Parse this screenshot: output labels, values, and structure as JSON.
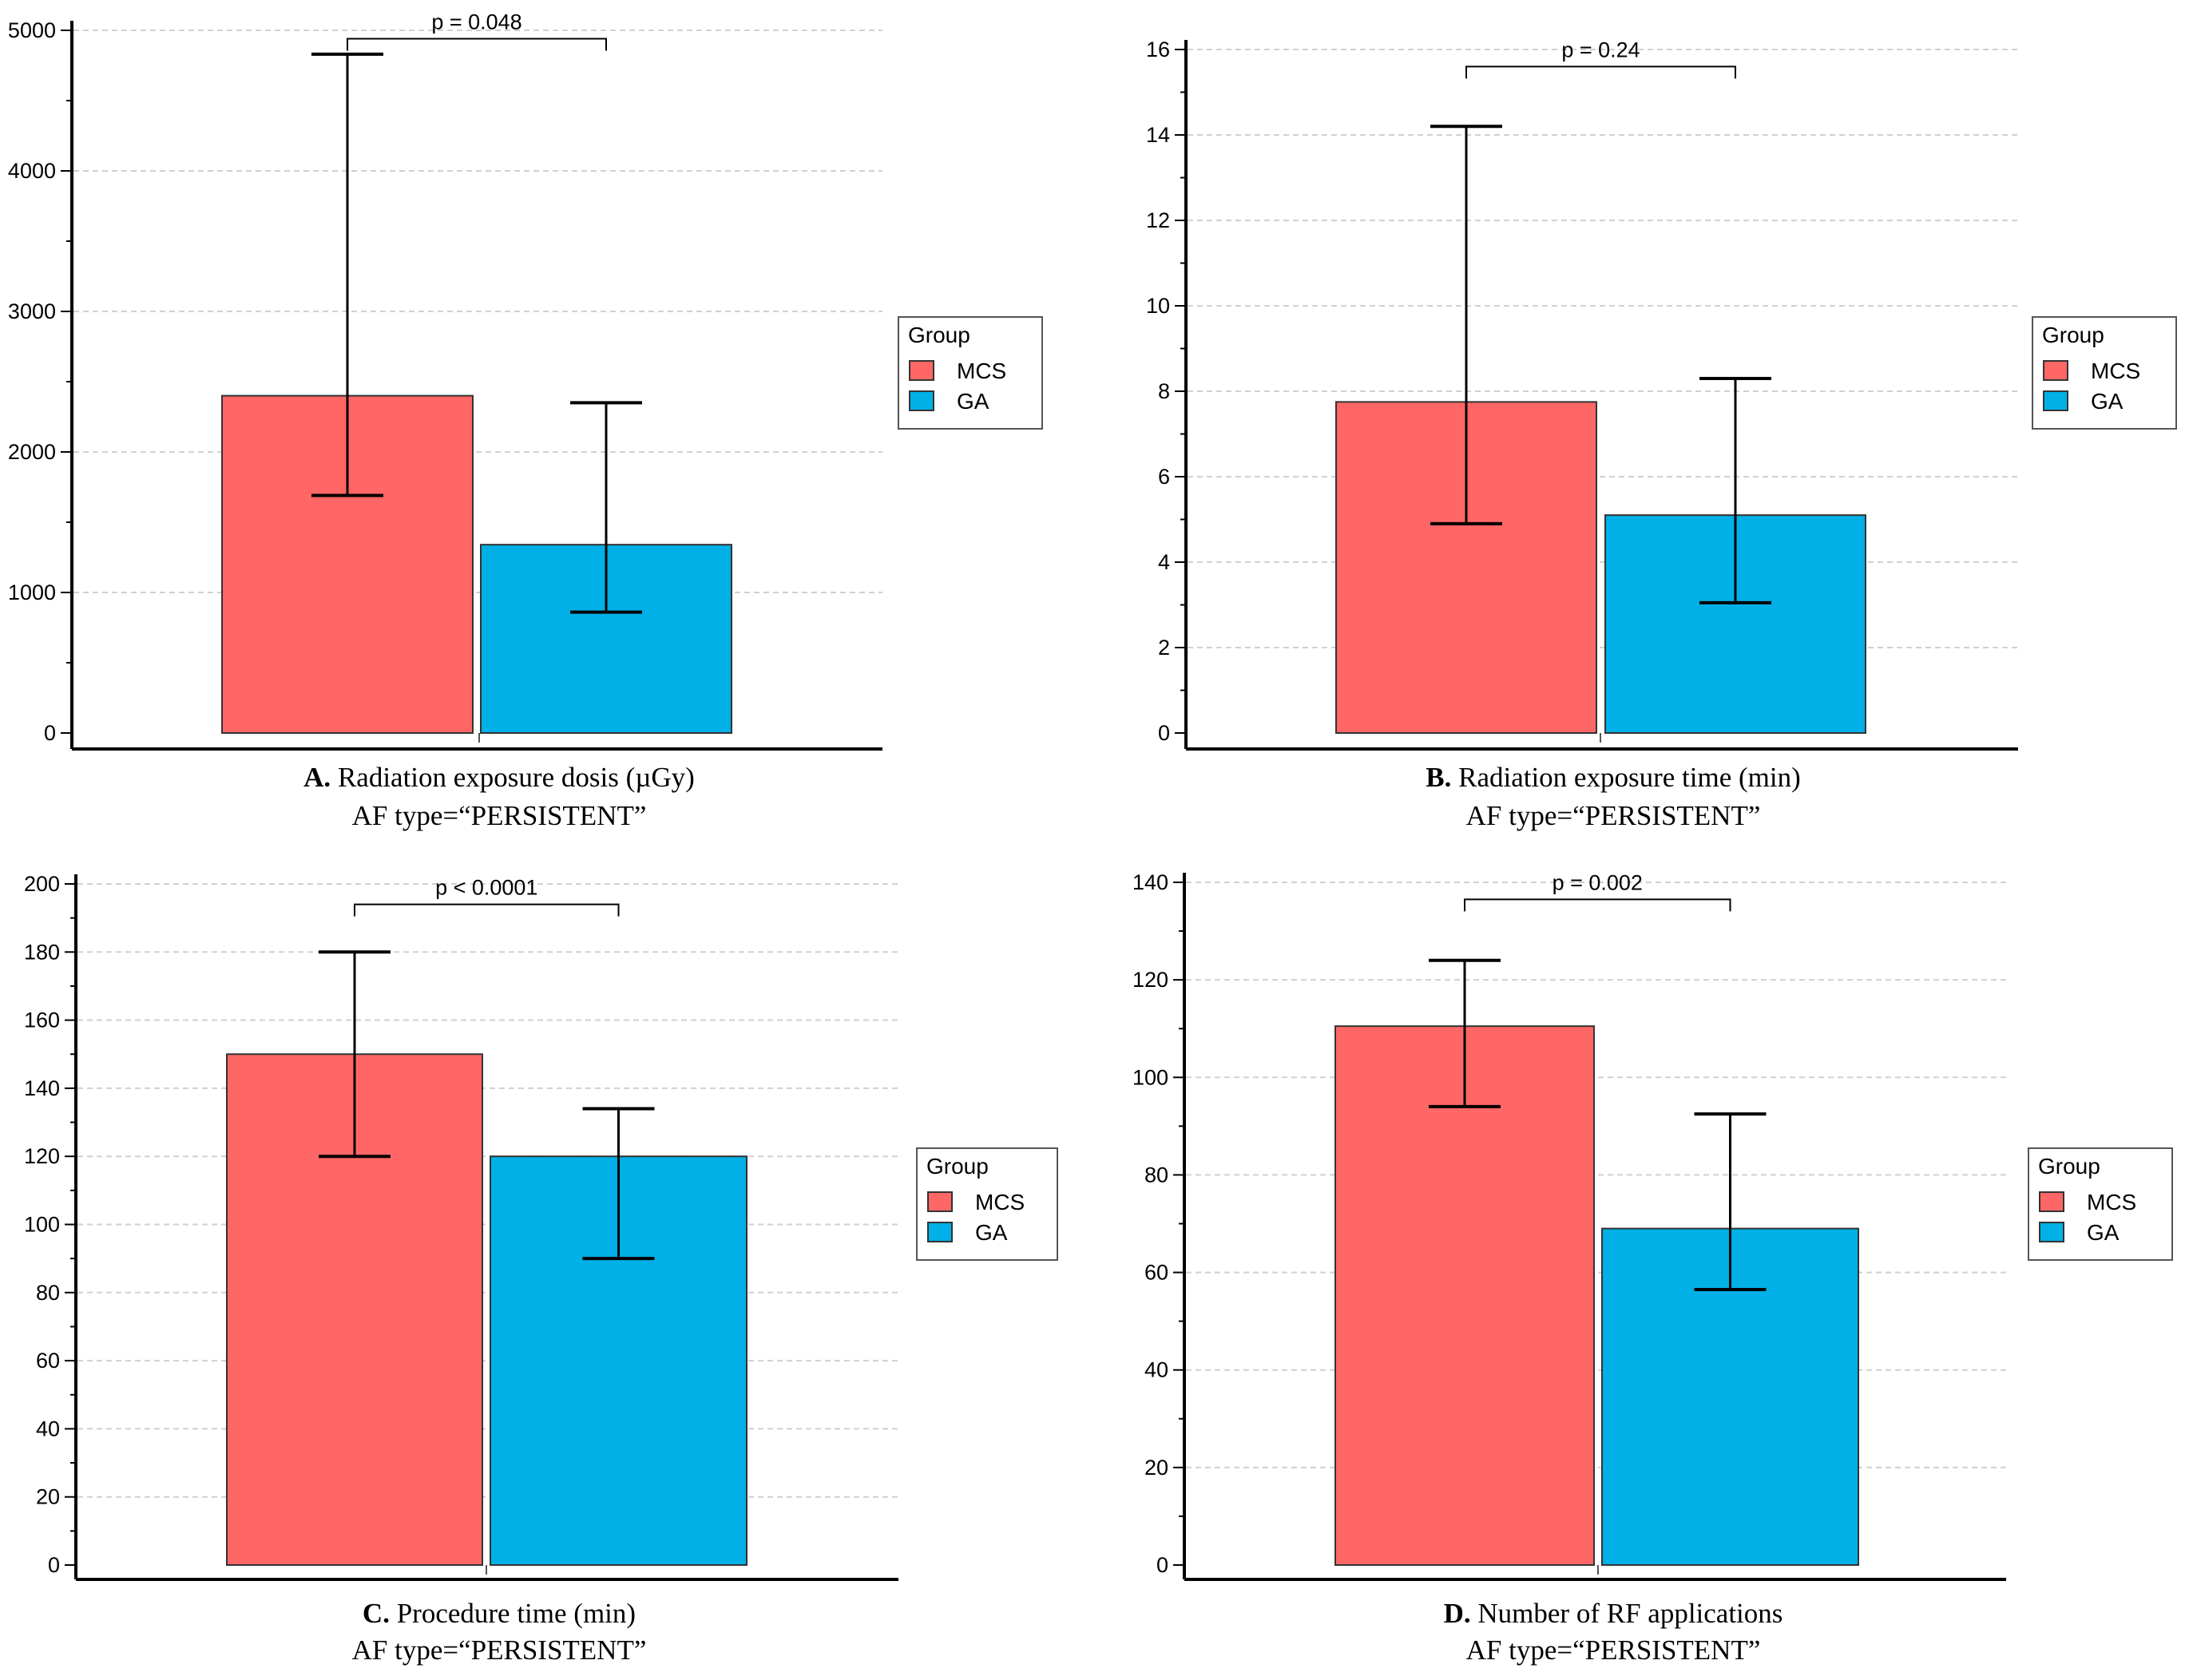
{
  "colors": {
    "MCS": "#ff6666",
    "GA": "#00b0e6",
    "grid": "#d0d0d0",
    "axis": "#000000"
  },
  "chart_data": [
    {
      "type": "bar",
      "panel": "A",
      "caption_letter": "A.",
      "caption_title": "Radiation exposure dosis (µGy)",
      "caption_sub": "AF type=“PERSISTENT”",
      "categories": [
        "MCS",
        "GA"
      ],
      "values": [
        2400,
        1340
      ],
      "err_low": [
        1690,
        860
      ],
      "err_high": [
        4830,
        2350
      ],
      "ylim": [
        0,
        5000
      ],
      "ticks": [
        0,
        1000,
        2000,
        3000,
        4000,
        5000
      ],
      "tick_labels": [
        "0",
        "1000",
        "2000",
        "3000",
        "4000",
        "5000"
      ],
      "pvalue": "p = 0.048",
      "bracket_y": 4940,
      "legend_title": "Group",
      "legend_labels": [
        "MCS",
        "GA"
      ],
      "grid": true
    },
    {
      "type": "bar",
      "panel": "B",
      "caption_letter": "B.",
      "caption_title": "Radiation exposure time (min)",
      "caption_sub": "AF type=“PERSISTENT”",
      "categories": [
        "MCS",
        "GA"
      ],
      "values": [
        7.75,
        5.1
      ],
      "err_low": [
        4.9,
        3.05
      ],
      "err_high": [
        14.2,
        8.3
      ],
      "ylim": [
        0,
        16
      ],
      "ticks": [
        0,
        2,
        4,
        6,
        8,
        10,
        12,
        14,
        16
      ],
      "tick_labels": [
        "0",
        "2",
        "4",
        "6",
        "8",
        "10",
        "12",
        "14",
        "16"
      ],
      "pvalue": "p = 0.24",
      "bracket_y": 15.6,
      "legend_title": "Group",
      "legend_labels": [
        "MCS",
        "GA"
      ],
      "grid": true
    },
    {
      "type": "bar",
      "panel": "C",
      "caption_letter": "C.",
      "caption_title": "Procedure time (min)",
      "caption_sub": "AF type=“PERSISTENT”",
      "categories": [
        "MCS",
        "GA"
      ],
      "values": [
        150,
        120
      ],
      "err_low": [
        120,
        90
      ],
      "err_high": [
        180,
        134
      ],
      "ylim": [
        0,
        200
      ],
      "ticks": [
        0,
        20,
        40,
        60,
        80,
        100,
        120,
        140,
        160,
        180,
        200
      ],
      "tick_labels": [
        "0",
        "20",
        "40",
        "60",
        "80",
        "100",
        "120",
        "140",
        "160",
        "180",
        "200"
      ],
      "pvalue": "p < 0.0001",
      "bracket_y": 194,
      "legend_title": "Group",
      "legend_labels": [
        "MCS",
        "GA"
      ],
      "grid": true
    },
    {
      "type": "bar",
      "panel": "D",
      "caption_letter": "D.",
      "caption_title": "Number of RF applications",
      "caption_sub": "AF type=“PERSISTENT”",
      "categories": [
        "MCS",
        "GA"
      ],
      "values": [
        110.5,
        69
      ],
      "err_low": [
        94,
        56.5
      ],
      "err_high": [
        124,
        92.5
      ],
      "ylim": [
        0,
        140
      ],
      "ticks": [
        0,
        20,
        40,
        60,
        80,
        100,
        120,
        140
      ],
      "tick_labels": [
        "0",
        "20",
        "40",
        "60",
        "80",
        "100",
        "120",
        "140"
      ],
      "pvalue": "p = 0.002",
      "bracket_y": 136.5,
      "legend_title": "Group",
      "legend_labels": [
        "MCS",
        "GA"
      ],
      "grid": true
    }
  ]
}
